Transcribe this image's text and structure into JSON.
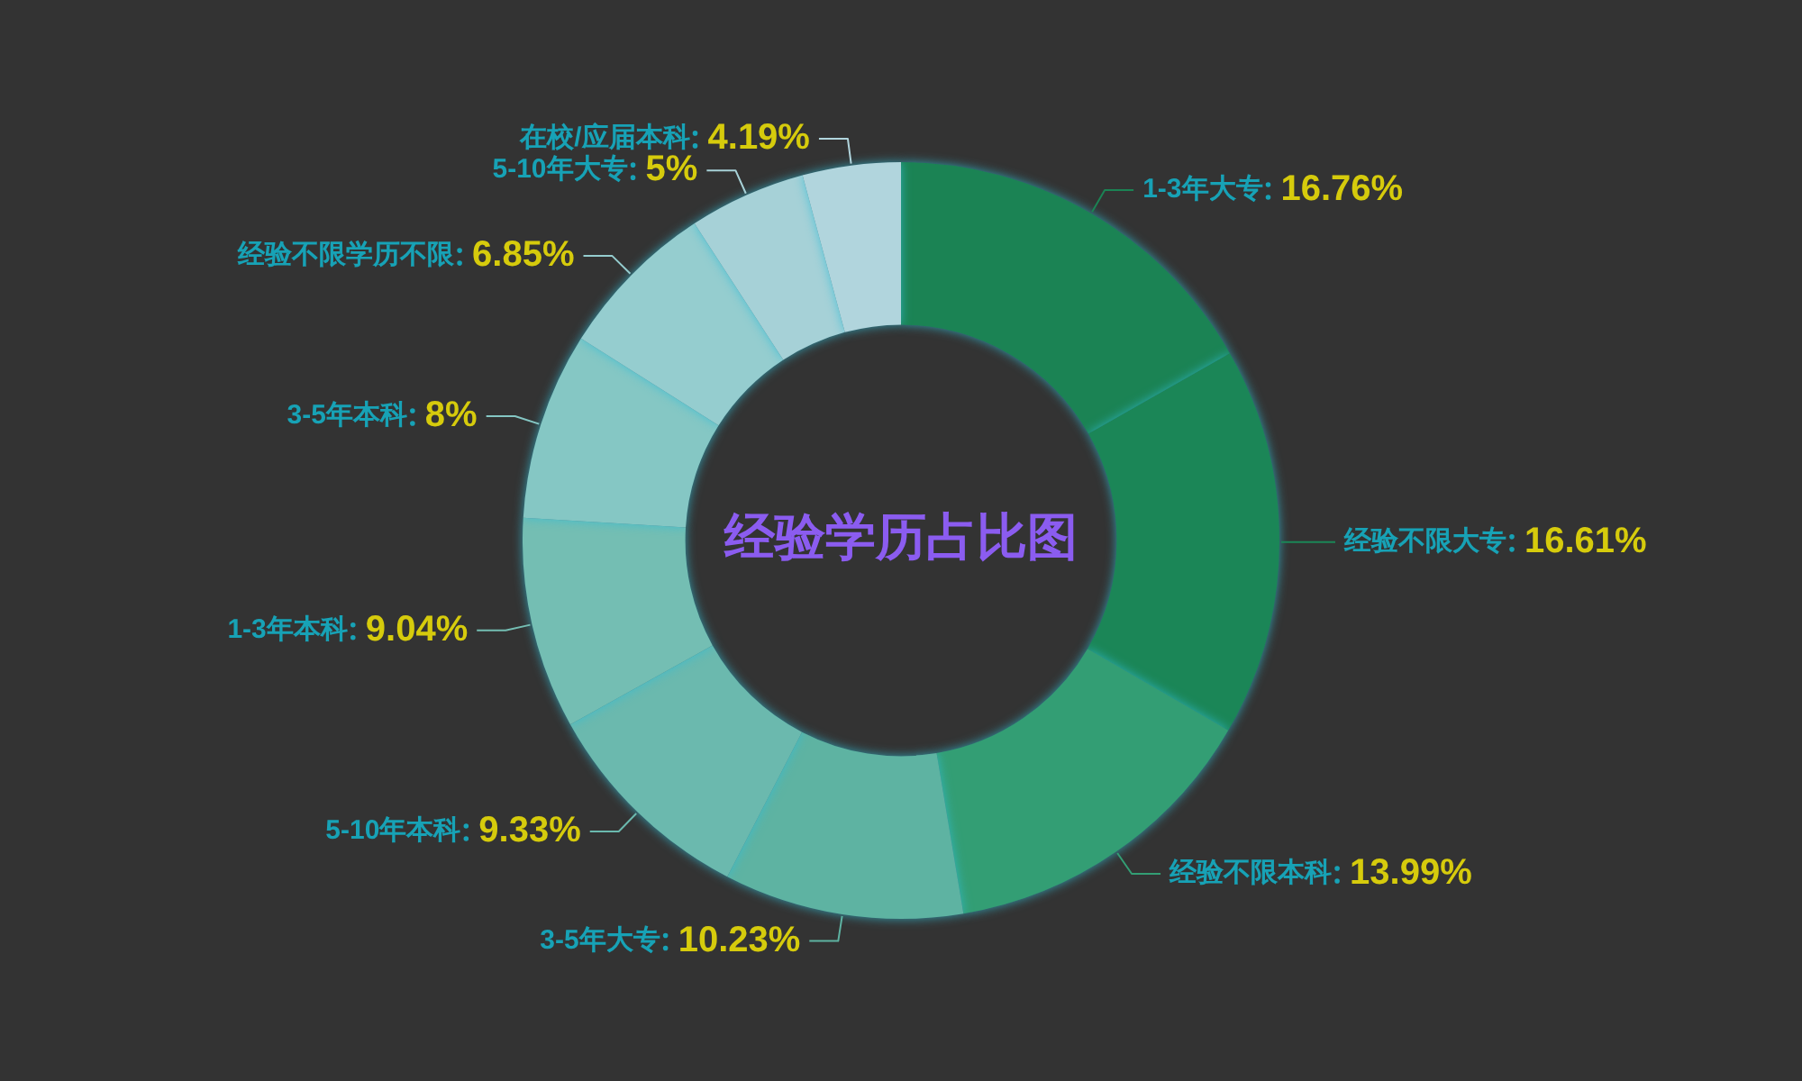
{
  "chart_data": {
    "type": "donut",
    "title": "经验学历占比图",
    "categories": [
      "1-3年大专",
      "经验不限大专",
      "经验不限本科",
      "3-5年大专",
      "5-10年本科",
      "1-3年本科",
      "3-5年本科",
      "经验不限学历不限",
      "5-10年大专",
      "在校/应届本科"
    ],
    "values": [
      16.76,
      16.61,
      13.99,
      10.23,
      9.33,
      9.04,
      8,
      6.85,
      5,
      4.19
    ],
    "colors": [
      "#1b8354",
      "#1b8657",
      "#339e74",
      "#5eb3a2",
      "#6bb9ae",
      "#74beb3",
      "#85c7c4",
      "#95cdcf",
      "#a6d1d7",
      "#b1d5dd"
    ],
    "value_labels": [
      "16.76%",
      "16.61%",
      "13.99%",
      "10.23%",
      "9.33%",
      "9.04%",
      "8%",
      "6.85%",
      "5%",
      "4.19%"
    ]
  }
}
